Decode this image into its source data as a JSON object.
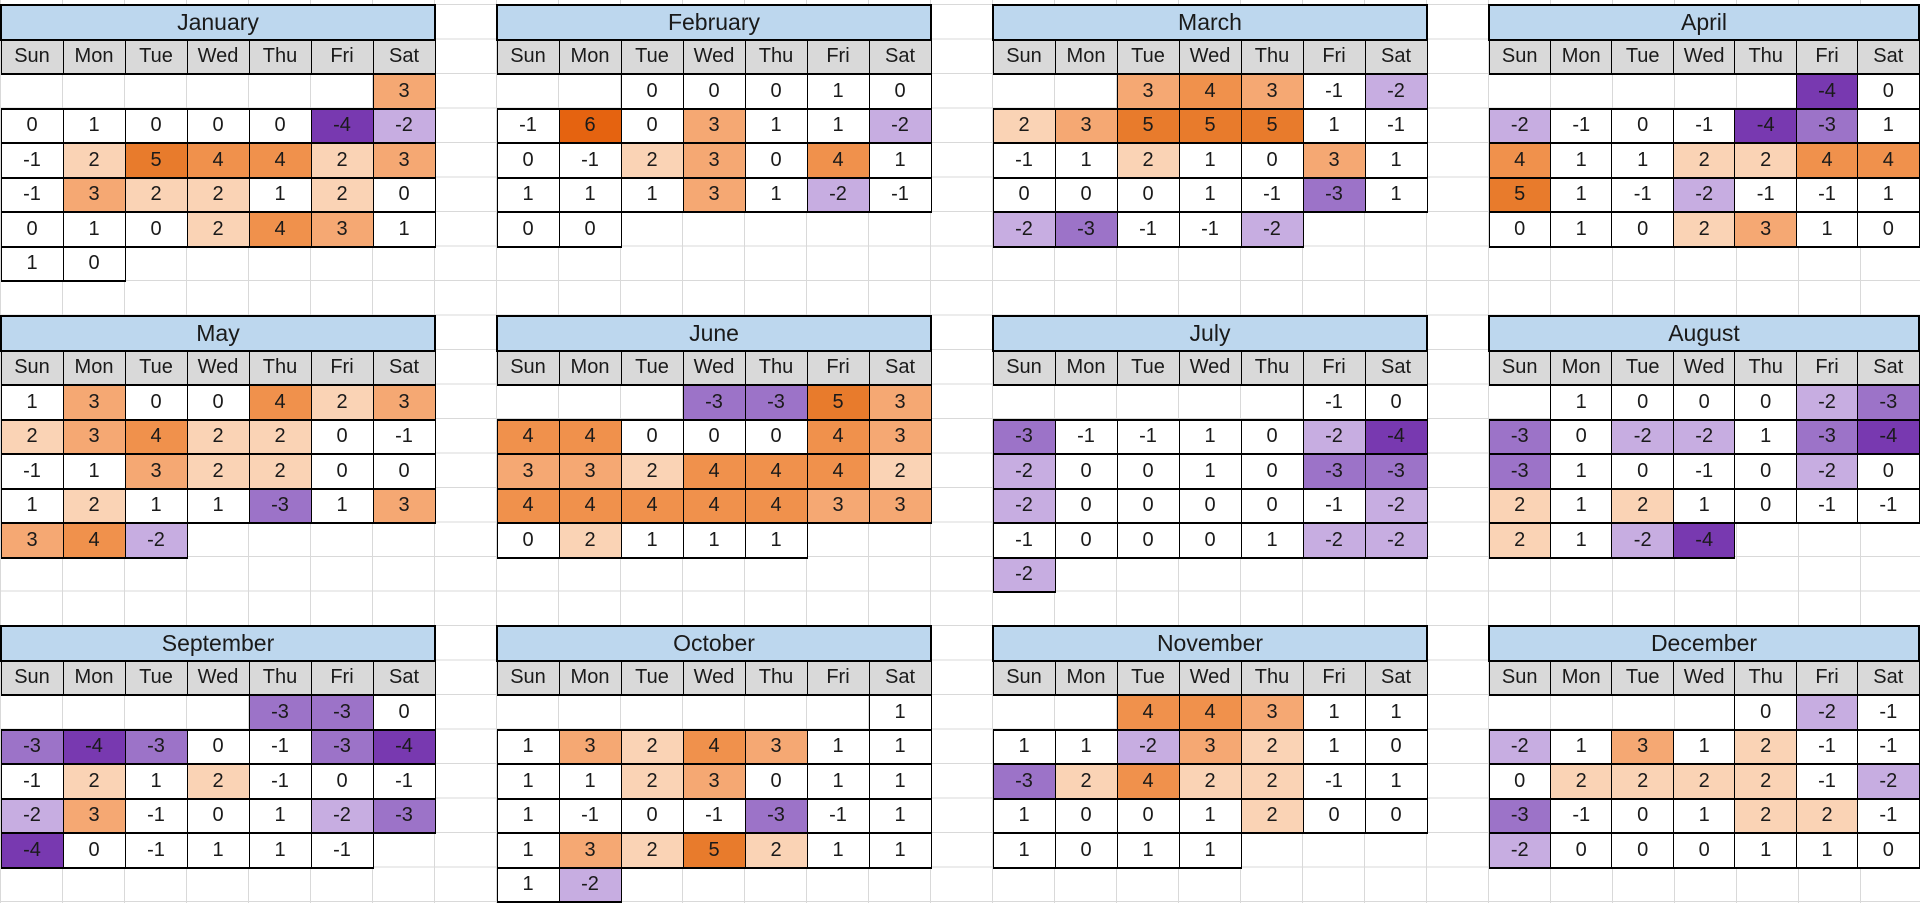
{
  "sheet": {
    "type": "calendar-heatmap-spreadsheet",
    "day_headers": [
      "Sun",
      "Mon",
      "Tue",
      "Wed",
      "Thu",
      "Fri",
      "Sat"
    ]
  },
  "colors": {
    "title_bg": "#BDD7EE",
    "header_bg": "#D9D9D9",
    "gridline": "#D9D9D9",
    "cell_border": "#000000",
    "text": "#1A1A1A",
    "value_colors": {
      "6": "#E56310",
      "5": "#E87B2C",
      "4": "#F0914C",
      "3": "#F5A873",
      "2": "#FAD3B5",
      "1": "#FFFFFF",
      "0": "#FFFFFF",
      "-1": "#FFFFFF",
      "-2": "#C7ADE1",
      "-3": "#9C73C8",
      "-4": "#7839B0"
    }
  },
  "months": [
    {
      "name": "January",
      "weeks": [
        [
          null,
          null,
          null,
          null,
          null,
          null,
          3
        ],
        [
          0,
          1,
          0,
          0,
          0,
          -4,
          -2
        ],
        [
          -1,
          2,
          5,
          4,
          4,
          2,
          3
        ],
        [
          -1,
          3,
          2,
          2,
          1,
          2,
          0
        ],
        [
          0,
          1,
          0,
          2,
          4,
          3,
          1
        ],
        [
          1,
          0,
          null,
          null,
          null,
          null,
          null
        ]
      ]
    },
    {
      "name": "February",
      "weeks": [
        [
          null,
          null,
          0,
          0,
          0,
          1,
          0
        ],
        [
          -1,
          6,
          0,
          3,
          1,
          1,
          -2
        ],
        [
          0,
          -1,
          2,
          3,
          0,
          4,
          1
        ],
        [
          1,
          1,
          1,
          3,
          1,
          -2,
          -1
        ],
        [
          0,
          0,
          null,
          null,
          null,
          null,
          null
        ]
      ]
    },
    {
      "name": "March",
      "weeks": [
        [
          null,
          null,
          3,
          4,
          3,
          -1,
          -2
        ],
        [
          2,
          3,
          5,
          5,
          5,
          1,
          -1
        ],
        [
          -1,
          1,
          2,
          1,
          0,
          3,
          1
        ],
        [
          0,
          0,
          0,
          1,
          -1,
          -3,
          1
        ],
        [
          -2,
          -3,
          -1,
          -1,
          -2,
          null,
          null
        ]
      ]
    },
    {
      "name": "April",
      "weeks": [
        [
          null,
          null,
          null,
          null,
          null,
          -4,
          0
        ],
        [
          -2,
          -1,
          0,
          -1,
          -4,
          -3,
          1
        ],
        [
          4,
          1,
          1,
          2,
          2,
          4,
          4
        ],
        [
          5,
          1,
          -1,
          -2,
          -1,
          -1,
          1
        ],
        [
          0,
          1,
          0,
          2,
          3,
          1,
          0
        ]
      ]
    },
    {
      "name": "May",
      "weeks": [
        [
          1,
          3,
          0,
          0,
          4,
          2,
          3
        ],
        [
          2,
          3,
          4,
          2,
          2,
          0,
          -1
        ],
        [
          -1,
          1,
          3,
          2,
          2,
          0,
          0
        ],
        [
          1,
          2,
          1,
          1,
          -3,
          1,
          3
        ],
        [
          3,
          4,
          -2,
          null,
          null,
          null,
          null
        ]
      ]
    },
    {
      "name": "June",
      "weeks": [
        [
          null,
          null,
          null,
          -3,
          -3,
          5,
          3
        ],
        [
          4,
          4,
          0,
          0,
          0,
          4,
          3
        ],
        [
          3,
          3,
          2,
          4,
          4,
          4,
          2
        ],
        [
          4,
          4,
          4,
          4,
          4,
          3,
          3
        ],
        [
          0,
          2,
          1,
          1,
          1,
          null,
          null
        ]
      ]
    },
    {
      "name": "July",
      "weeks": [
        [
          null,
          null,
          null,
          null,
          null,
          -1,
          0
        ],
        [
          -3,
          -1,
          -1,
          1,
          0,
          -2,
          -4
        ],
        [
          -2,
          0,
          0,
          1,
          0,
          -3,
          -3
        ],
        [
          -2,
          0,
          0,
          0,
          0,
          -1,
          -2
        ],
        [
          -1,
          0,
          0,
          0,
          1,
          -2,
          -2
        ],
        [
          -2,
          null,
          null,
          null,
          null,
          null,
          null
        ]
      ]
    },
    {
      "name": "August",
      "weeks": [
        [
          null,
          1,
          0,
          0,
          0,
          -2,
          -3
        ],
        [
          -3,
          0,
          -2,
          -2,
          1,
          -3,
          -4
        ],
        [
          -3,
          1,
          0,
          -1,
          0,
          -2,
          0
        ],
        [
          2,
          1,
          2,
          1,
          0,
          -1,
          -1
        ],
        [
          2,
          1,
          -2,
          -4,
          null,
          null,
          null
        ]
      ]
    },
    {
      "name": "September",
      "weeks": [
        [
          null,
          null,
          null,
          null,
          -3,
          -3,
          0
        ],
        [
          -3,
          -4,
          -3,
          0,
          -1,
          -3,
          -4
        ],
        [
          -1,
          2,
          1,
          2,
          -1,
          0,
          -1
        ],
        [
          -2,
          3,
          -1,
          0,
          1,
          -2,
          -3
        ],
        [
          -4,
          0,
          -1,
          1,
          1,
          -1,
          null
        ]
      ]
    },
    {
      "name": "October",
      "weeks": [
        [
          null,
          null,
          null,
          null,
          null,
          null,
          1
        ],
        [
          1,
          3,
          2,
          4,
          3,
          1,
          1
        ],
        [
          1,
          1,
          2,
          3,
          0,
          1,
          1
        ],
        [
          1,
          -1,
          0,
          -1,
          -3,
          -1,
          1
        ],
        [
          1,
          3,
          2,
          5,
          2,
          1,
          1
        ],
        [
          1,
          -2,
          null,
          null,
          null,
          null,
          null
        ]
      ]
    },
    {
      "name": "November",
      "weeks": [
        [
          null,
          null,
          4,
          4,
          3,
          1,
          1
        ],
        [
          1,
          1,
          -2,
          3,
          2,
          1,
          0
        ],
        [
          -3,
          2,
          4,
          2,
          2,
          -1,
          1
        ],
        [
          1,
          0,
          0,
          1,
          2,
          0,
          0
        ],
        [
          1,
          0,
          1,
          1,
          null,
          null,
          null
        ]
      ]
    },
    {
      "name": "December",
      "weeks": [
        [
          null,
          null,
          null,
          null,
          0,
          -2,
          -1
        ],
        [
          -2,
          1,
          3,
          1,
          2,
          -1,
          -1
        ],
        [
          0,
          2,
          2,
          2,
          2,
          -1,
          -2
        ],
        [
          -3,
          -1,
          0,
          1,
          2,
          2,
          -1
        ],
        [
          -2,
          0,
          0,
          0,
          1,
          1,
          0
        ]
      ]
    }
  ]
}
